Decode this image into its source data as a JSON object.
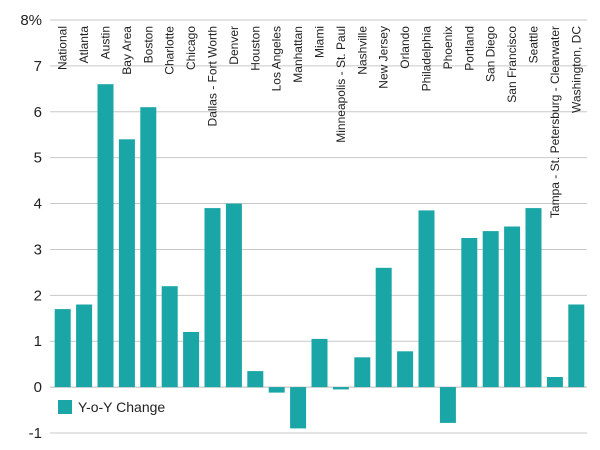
{
  "chart_data": {
    "type": "bar",
    "categories": [
      "National",
      "Atlanta",
      "Austin",
      "Bay Area",
      "Boston",
      "Charlotte",
      "Chicago",
      "Dallas - Fort Worth",
      "Denver",
      "Houston",
      "Los Angeles",
      "Manhattan",
      "Miami",
      "Minneapolis - St. Paul",
      "Nashville",
      "New Jersey",
      "Orlando",
      "Philadelphia",
      "Phoenix",
      "Portland",
      "San Diego",
      "San Francisco",
      "Seattle",
      "Tampa - St. Petersburg - Clearwater",
      "Washington, DC"
    ],
    "series": [
      {
        "name": "Y-o-Y Change",
        "values": [
          1.7,
          1.8,
          6.6,
          5.4,
          6.1,
          2.2,
          1.2,
          3.9,
          4.0,
          0.35,
          -0.12,
          -0.9,
          1.05,
          -0.05,
          0.65,
          2.6,
          0.78,
          3.85,
          -0.78,
          3.25,
          3.4,
          3.5,
          3.9,
          0.22,
          1.8
        ]
      }
    ],
    "y_ticks": [
      "8%",
      "7",
      "6",
      "5",
      "4",
      "3",
      "2",
      "1",
      "0",
      "-1"
    ],
    "ylim": [
      -1,
      8
    ],
    "grid": true,
    "legend": "bottom-left",
    "highlight_category": "National",
    "colors": {
      "bar": "#1aa5a6",
      "highlight_label": "#1aa5a6",
      "grid": "#c8c8c8",
      "text": "#222222"
    }
  }
}
